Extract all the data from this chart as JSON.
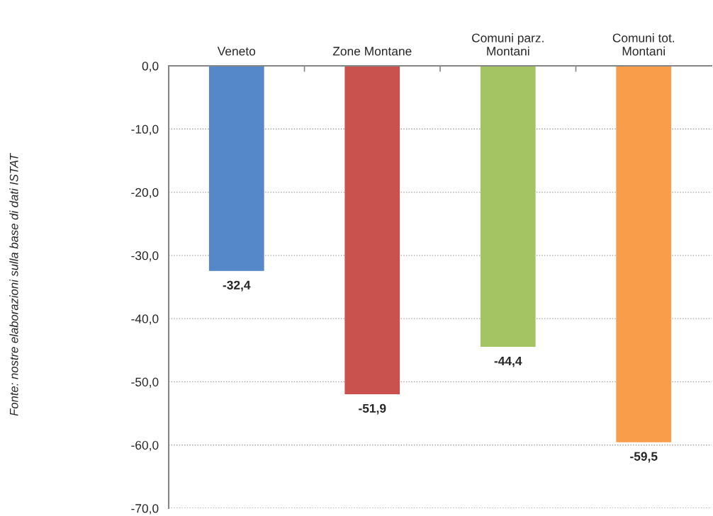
{
  "chart_data": {
    "type": "bar",
    "categories": [
      "Veneto",
      "Zone Montane",
      "Comuni parz.\nMontani",
      "Comuni tot.\nMontani"
    ],
    "values": [
      -32.4,
      -51.9,
      -44.4,
      -59.5
    ],
    "colors": [
      "#5588c8",
      "#c9524f",
      "#a4c464",
      "#f99d4b"
    ],
    "value_labels": [
      "-32,4",
      "-51,9",
      "-44,4",
      "-59,5"
    ],
    "ylim": [
      -70,
      0
    ],
    "yticks": [
      {
        "value": 0,
        "label": "0,0"
      },
      {
        "value": -10,
        "label": "-10,0"
      },
      {
        "value": -20,
        "label": "-20,0"
      },
      {
        "value": -30,
        "label": "-30,0"
      },
      {
        "value": -40,
        "label": "-40,0"
      },
      {
        "value": -50,
        "label": "-50,0"
      },
      {
        "value": -60,
        "label": "-60,0"
      },
      {
        "value": -70,
        "label": "-70,0"
      }
    ],
    "grid": "y",
    "annotations": [
      "Fonte: nostre elaborazioni sulla base di dati ISTAT"
    ]
  }
}
